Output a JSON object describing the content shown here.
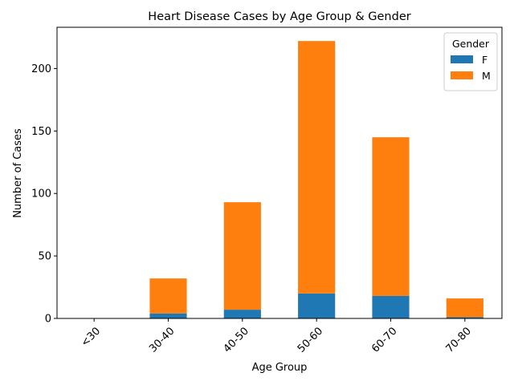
{
  "chart_data": {
    "type": "bar",
    "stacked": true,
    "title": "Heart Disease Cases by Age Group & Gender",
    "xlabel": "Age Group",
    "ylabel": "Number of Cases",
    "categories": [
      "<30",
      "30-40",
      "40-50",
      "50-60",
      "60-70",
      "70-80"
    ],
    "series": [
      {
        "name": "F",
        "color": "#1f77b4",
        "values": [
          0,
          4,
          7,
          20,
          18,
          1
        ]
      },
      {
        "name": "M",
        "color": "#ff7f0e",
        "values": [
          0,
          28,
          86,
          202,
          127,
          15
        ]
      }
    ],
    "ylim": [
      0,
      233
    ],
    "yticks": [
      0,
      50,
      100,
      150,
      200
    ],
    "grid": false,
    "legend": {
      "title": "Gender",
      "placement": "top-right"
    }
  }
}
